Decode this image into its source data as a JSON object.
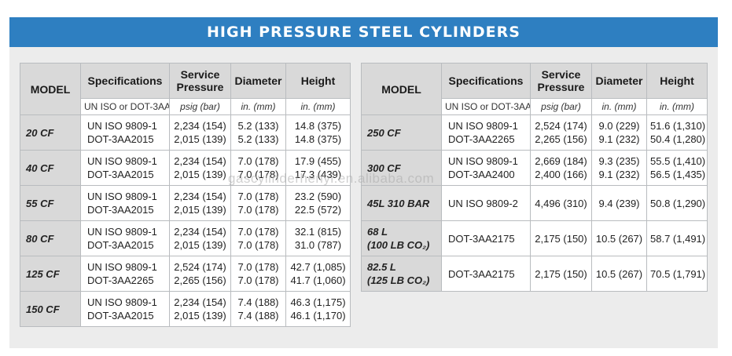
{
  "title": "HIGH PRESSURE STEEL CYLINDERS",
  "colors": {
    "banner": "#2e7fc1",
    "model_bg": "#d9d9d9",
    "panel": "#ececec"
  },
  "watermark": "gascylinderhenyi.en.alibaba.com",
  "headers": {
    "model": "MODEL",
    "specifications": "Specifications",
    "service_pressure_1": "Service",
    "service_pressure_2": "Pressure",
    "diameter": "Diameter",
    "height": "Height",
    "spec_sub": "UN ISO or DOT-3AA",
    "pressure_sub": "psig (bar)",
    "diameter_sub": "in. (mm)",
    "height_sub": "in. (mm)"
  },
  "left_rows": [
    {
      "model": "20 CF",
      "spec": [
        "UN ISO 9809-1",
        "DOT-3AA2015"
      ],
      "pressure": [
        "2,234 (154)",
        "2,015 (139)"
      ],
      "diameter": [
        "5.2 (133)",
        "5.2 (133)"
      ],
      "height": [
        "14.8 (375)",
        "14.8 (375)"
      ]
    },
    {
      "model": "40 CF",
      "spec": [
        "UN ISO 9809-1",
        "DOT-3AA2015"
      ],
      "pressure": [
        "2,234 (154)",
        "2,015 (139)"
      ],
      "diameter": [
        "7.0 (178)",
        "7.0 (178)"
      ],
      "height": [
        "17.9 (455)",
        "17.3 (439)"
      ]
    },
    {
      "model": "55 CF",
      "spec": [
        "UN ISO 9809-1",
        "DOT-3AA2015"
      ],
      "pressure": [
        "2,234 (154)",
        "2,015 (139)"
      ],
      "diameter": [
        "7.0 (178)",
        "7.0 (178)"
      ],
      "height": [
        "23.2 (590)",
        "22.5 (572)"
      ]
    },
    {
      "model": "80 CF",
      "spec": [
        "UN ISO 9809-1",
        "DOT-3AA2015"
      ],
      "pressure": [
        "2,234 (154)",
        "2,015 (139)"
      ],
      "diameter": [
        "7.0 (178)",
        "7.0 (178)"
      ],
      "height": [
        "32.1 (815)",
        "31.0 (787)"
      ]
    },
    {
      "model": "125 CF",
      "spec": [
        "UN ISO 9809-1",
        "DOT-3AA2265"
      ],
      "pressure": [
        "2,524 (174)",
        "2,265 (156)"
      ],
      "diameter": [
        "7.0 (178)",
        "7.0 (178)"
      ],
      "height": [
        "42.7 (1,085)",
        "41.7 (1,060)"
      ]
    },
    {
      "model": "150 CF",
      "spec": [
        "UN ISO 9809-1",
        "DOT-3AA2015"
      ],
      "pressure": [
        "2,234 (154)",
        "2,015 (139)"
      ],
      "diameter": [
        "7.4 (188)",
        "7.4 (188)"
      ],
      "height": [
        "46.3 (1,175)",
        "46.1 (1,170)"
      ]
    }
  ],
  "right_rows": [
    {
      "model": [
        "250 CF"
      ],
      "spec": [
        "UN ISO 9809-1",
        "DOT-3AA2265"
      ],
      "pressure": [
        "2,524 (174)",
        "2,265 (156)"
      ],
      "diameter": [
        "9.0 (229)",
        "9.1 (232)"
      ],
      "height": [
        "51.6 (1,310)",
        "50.4 (1,280)"
      ]
    },
    {
      "model": [
        "300 CF"
      ],
      "spec": [
        "UN ISO 9809-1",
        "DOT-3AA2400"
      ],
      "pressure": [
        "2,669 (184)",
        "2,400 (166)"
      ],
      "diameter": [
        "9.3 (235)",
        "9.1 (232)"
      ],
      "height": [
        "55.5 (1,410)",
        "56.5 (1,435)"
      ]
    },
    {
      "model": [
        "45L 310 BAR"
      ],
      "spec": [
        "UN ISO 9809-2"
      ],
      "pressure": [
        "4,496 (310)"
      ],
      "diameter": [
        "9.4 (239)"
      ],
      "height": [
        "50.8 (1,290)"
      ]
    },
    {
      "model": [
        "68 L",
        "(100 LB CO₂)"
      ],
      "spec": [
        "DOT-3AA2175"
      ],
      "pressure": [
        "2,175 (150)"
      ],
      "diameter": [
        "10.5 (267)"
      ],
      "height": [
        "58.7 (1,491)"
      ]
    },
    {
      "model": [
        "82.5 L",
        "(125 LB CO₂)"
      ],
      "spec": [
        "DOT-3AA2175"
      ],
      "pressure": [
        "2,175 (150)"
      ],
      "diameter": [
        "10.5 (267)"
      ],
      "height": [
        "70.5 (1,791)"
      ]
    }
  ]
}
